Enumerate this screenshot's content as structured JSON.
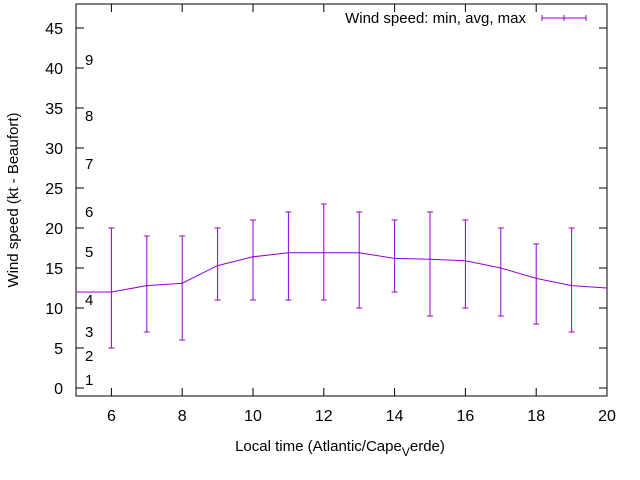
{
  "chart_data": {
    "type": "line",
    "title": "",
    "xlabel": "Local time (Atlantic/Cape_Verde)",
    "xlabel_parts": {
      "before": "Local time (Atlantic/Cape",
      "subscript": "V",
      "after": "erde)"
    },
    "ylabel": "Wind speed (kt - Beaufort)",
    "xlim": [
      5,
      20
    ],
    "ylim": [
      -1,
      48
    ],
    "x_ticks": [
      6,
      8,
      10,
      12,
      14,
      16,
      18,
      20
    ],
    "y_ticks": [
      0,
      5,
      10,
      15,
      20,
      25,
      30,
      35,
      40,
      45
    ],
    "grid": false,
    "legend_position": "top-right",
    "series": [
      {
        "name": "Wind speed: min, avg, max",
        "color": "#9400d3",
        "x": [
          5,
          6,
          7,
          8,
          9,
          10,
          11,
          12,
          13,
          14,
          15,
          16,
          17,
          18,
          19,
          20
        ],
        "avg": [
          12,
          12,
          12.8,
          13.1,
          15.3,
          16.4,
          16.9,
          16.9,
          16.9,
          16.2,
          16.1,
          15.9,
          15,
          13.7,
          12.8,
          12.5
        ],
        "min": [
          null,
          5,
          7,
          6,
          11,
          11,
          11,
          11,
          10,
          12,
          9,
          10,
          9,
          8,
          7,
          null
        ],
        "max": [
          null,
          20,
          19,
          19,
          20,
          21,
          22,
          23,
          22,
          21,
          22,
          21,
          20,
          18,
          20,
          null
        ]
      }
    ],
    "beaufort_labels": [
      {
        "label": "1",
        "y": 1
      },
      {
        "label": "2",
        "y": 4
      },
      {
        "label": "3",
        "y": 7
      },
      {
        "label": "4",
        "y": 11
      },
      {
        "label": "5",
        "y": 17
      },
      {
        "label": "6",
        "y": 22
      },
      {
        "label": "7",
        "y": 28
      },
      {
        "label": "8",
        "y": 34
      },
      {
        "label": "9",
        "y": 41
      }
    ]
  }
}
